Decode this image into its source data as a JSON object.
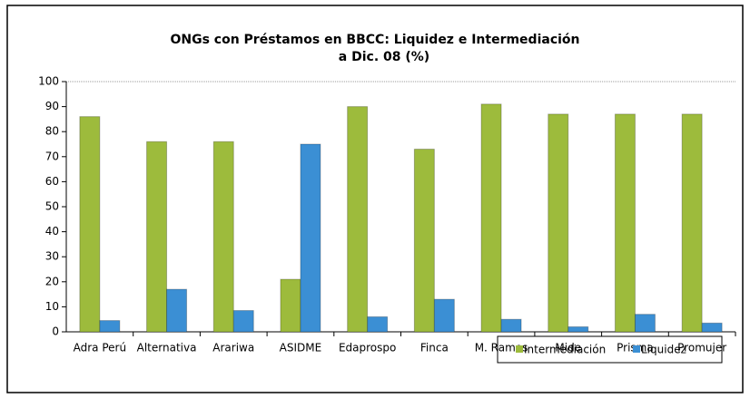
{
  "chart_data": {
    "type": "bar",
    "title": [
      "ONGs con Préstamos en BBCC: Liquidez e  Intermediación",
      "a Dic. 08   (%)"
    ],
    "categories": [
      "Adra Perú",
      "Alternativa",
      "Arariwa",
      "ASIDME",
      "Edaprospo",
      "Finca",
      "M. Ramos",
      "Mide",
      "Prisma",
      "Promujer"
    ],
    "series": [
      {
        "name": "Intermediación",
        "color": "#9dbb3c",
        "values": [
          86,
          76,
          76,
          21,
          90,
          73,
          91,
          87,
          87,
          87
        ]
      },
      {
        "name": "Liquidez",
        "color": "#3b8fd4",
        "values": [
          4.5,
          17,
          8.5,
          75,
          6,
          13,
          5,
          2,
          7,
          3.5
        ]
      }
    ],
    "ylim": [
      0,
      100
    ],
    "yticks": [
      0,
      10,
      20,
      30,
      40,
      50,
      60,
      70,
      80,
      90,
      100
    ],
    "grid": false,
    "legend": "bottom-right"
  }
}
